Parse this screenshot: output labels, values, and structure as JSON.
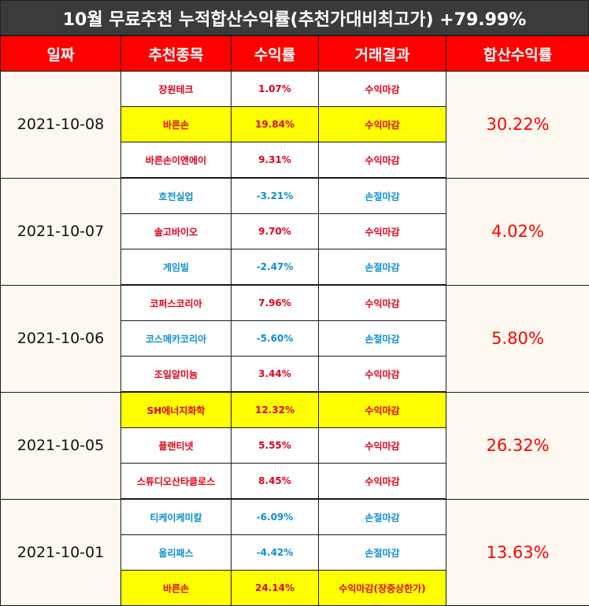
{
  "title": "10월 무료추천 누적합산수익률(추천가대비최고가) +79.99%",
  "headers": [
    "일짜",
    "추천종목",
    "수익률",
    "거래결과",
    "합산수익률"
  ],
  "colors": {
    "profit": "#e0001b",
    "loss": "#0d8fd0",
    "highlight": "#ffff00",
    "header": "#ff0000"
  },
  "groups": [
    {
      "date": "2021-10-08",
      "total": "30.22%",
      "rows": [
        {
          "name": "장원테크",
          "rate": "1.07%",
          "result": "수익마감",
          "highlight": false,
          "loss": false
        },
        {
          "name": "바른손",
          "rate": "19.84%",
          "result": "수익마감",
          "highlight": true,
          "loss": false
        },
        {
          "name": "바른손이앤에이",
          "rate": "9.31%",
          "result": "수익마감",
          "highlight": false,
          "loss": false
        }
      ]
    },
    {
      "date": "2021-10-07",
      "total": "4.02%",
      "rows": [
        {
          "name": "호전실업",
          "rate": "-3.21%",
          "result": "손절마감",
          "highlight": false,
          "loss": true
        },
        {
          "name": "솔고바이오",
          "rate": "9.70%",
          "result": "수익마감",
          "highlight": false,
          "loss": false
        },
        {
          "name": "게임빌",
          "rate": "-2.47%",
          "result": "손절마감",
          "highlight": false,
          "loss": true
        }
      ]
    },
    {
      "date": "2021-10-06",
      "total": "5.80%",
      "rows": [
        {
          "name": "코퍼스코리아",
          "rate": "7.96%",
          "result": "수익마감",
          "highlight": false,
          "loss": false
        },
        {
          "name": "코스메카코리아",
          "rate": "-5.60%",
          "result": "손절마감",
          "highlight": false,
          "loss": true
        },
        {
          "name": "조일알미늄",
          "rate": "3.44%",
          "result": "수익마감",
          "highlight": false,
          "loss": false
        }
      ]
    },
    {
      "date": "2021-10-05",
      "total": "26.32%",
      "rows": [
        {
          "name": "SH에너지화학",
          "rate": "12.32%",
          "result": "수익마감",
          "highlight": true,
          "loss": false
        },
        {
          "name": "플랜티넷",
          "rate": "5.55%",
          "result": "수익마감",
          "highlight": false,
          "loss": false
        },
        {
          "name": "스튜디오산타클로스",
          "rate": "8.45%",
          "result": "수익마감",
          "highlight": false,
          "loss": false
        }
      ]
    },
    {
      "date": "2021-10-01",
      "total": "13.63%",
      "rows": [
        {
          "name": "티케이케미칼",
          "rate": "-6.09%",
          "result": "손절마감",
          "highlight": false,
          "loss": true
        },
        {
          "name": "올리패스",
          "rate": "-4.42%",
          "result": "손절마감",
          "highlight": false,
          "loss": true
        },
        {
          "name": "바른손",
          "rate": "24.14%",
          "result": "수익마감(장중상한가)",
          "highlight": true,
          "loss": false
        }
      ]
    }
  ]
}
